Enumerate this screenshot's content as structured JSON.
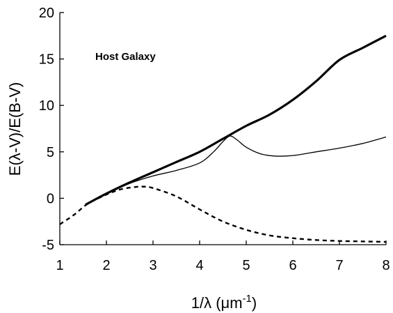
{
  "chart_data": {
    "type": "line",
    "title": "",
    "annotation": "Host Galaxy",
    "xlabel_main": "1/λ (μm",
    "xlabel_sup": "-1",
    "xlabel_close": ")",
    "ylabel": "E(λ-V)/E(B-V)",
    "xlim": [
      1,
      8
    ],
    "ylim": [
      -5,
      20
    ],
    "x_ticks": [
      1,
      2,
      3,
      4,
      5,
      6,
      7,
      8
    ],
    "y_ticks": [
      -5,
      0,
      5,
      10,
      15,
      20
    ],
    "x_tick_labels": [
      "1",
      "2",
      "3",
      "4",
      "5",
      "6",
      "7",
      "8"
    ],
    "y_tick_labels": [
      "-5",
      "0",
      "5",
      "10",
      "15",
      "20"
    ],
    "grid": false,
    "legend": "none",
    "series": [
      {
        "style": "thick-solid",
        "x": [
          1.55,
          2.0,
          2.5,
          3.0,
          3.5,
          4.0,
          4.5,
          5.0,
          5.5,
          6.0,
          6.5,
          7.0,
          7.5,
          8.0
        ],
        "y": [
          -0.7,
          0.5,
          1.7,
          2.8,
          3.9,
          5.0,
          6.4,
          7.8,
          9.0,
          10.6,
          12.6,
          14.9,
          16.2,
          17.5
        ]
      },
      {
        "style": "thin-solid",
        "x": [
          1.55,
          2.0,
          2.5,
          3.0,
          3.5,
          4.0,
          4.3,
          4.5,
          4.65,
          4.8,
          5.0,
          5.3,
          5.6,
          6.0,
          6.5,
          7.0,
          7.5,
          8.0
        ],
        "y": [
          -0.7,
          0.5,
          1.6,
          2.4,
          3.0,
          3.8,
          5.0,
          6.1,
          6.7,
          6.3,
          5.5,
          4.8,
          4.55,
          4.6,
          5.0,
          5.4,
          5.9,
          6.6
        ]
      },
      {
        "style": "dashed",
        "x": [
          1.0,
          1.3,
          1.6,
          2.0,
          2.3,
          2.6,
          2.8,
          3.0,
          3.5,
          4.0,
          4.5,
          5.0,
          5.5,
          6.0,
          6.5,
          7.0,
          7.5,
          8.0
        ],
        "y": [
          -2.8,
          -1.8,
          -0.6,
          0.4,
          0.95,
          1.2,
          1.25,
          1.1,
          0.2,
          -1.2,
          -2.5,
          -3.4,
          -4.0,
          -4.3,
          -4.5,
          -4.6,
          -4.65,
          -4.7
        ]
      }
    ]
  }
}
